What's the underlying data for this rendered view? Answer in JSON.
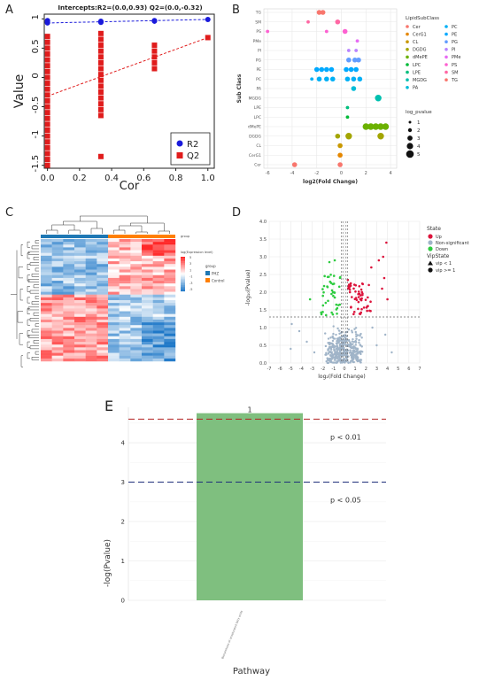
{
  "panels": {
    "A": "A",
    "B": "B",
    "C": "C",
    "D": "D",
    "E": "E"
  },
  "chart_data": [
    {
      "id": "A",
      "type": "scatter",
      "title": "Intercepts:R2=(0.0,0.93) Q2=(0.0,-0.32)",
      "xlabel": "Cor",
      "ylabel": "Value",
      "xlim": [
        -0.02,
        1.04
      ],
      "ylim": [
        -1.55,
        1.08
      ],
      "xticks": [
        "0.0",
        "0.2",
        "0.4",
        "0.6",
        "0.8",
        "1.0"
      ],
      "yticks": [
        "-1.5",
        "-1",
        "-0.5",
        "0",
        "0.5",
        "1"
      ],
      "legend": [
        "R2",
        "Q2"
      ],
      "legend_position": "bottom-right",
      "series": [
        {
          "name": "R2",
          "color": "#1a1adb",
          "marker": "circle",
          "points": [
            [
              0.0,
              0.93
            ],
            [
              0.0,
              0.96
            ],
            [
              0.0,
              0.94
            ],
            [
              0.0,
              0.97
            ],
            [
              0.333,
              0.95
            ],
            [
              0.333,
              0.96
            ],
            [
              0.333,
              0.94
            ],
            [
              0.667,
              0.96
            ],
            [
              0.667,
              0.97
            ],
            [
              1.0,
              0.99
            ]
          ],
          "fit": [
            [
              0.0,
              0.93
            ],
            [
              1.0,
              0.99
            ]
          ]
        },
        {
          "name": "Q2",
          "color": "#e01c1c",
          "marker": "square",
          "points": [
            [
              0,
              0.7
            ],
            [
              0,
              0.6
            ],
            [
              0,
              0.5
            ],
            [
              0,
              0.4
            ],
            [
              0,
              0.3
            ],
            [
              0,
              0.2
            ],
            [
              0,
              0.1
            ],
            [
              0,
              0.0
            ],
            [
              0,
              -0.1
            ],
            [
              0,
              -0.2
            ],
            [
              0,
              -0.3
            ],
            [
              0,
              -0.4
            ],
            [
              0,
              -0.5
            ],
            [
              0,
              -0.6
            ],
            [
              0,
              -0.7
            ],
            [
              0,
              -0.8
            ],
            [
              0,
              -0.9
            ],
            [
              0,
              -1.0
            ],
            [
              0,
              -1.1
            ],
            [
              0,
              -1.2
            ],
            [
              0,
              -1.3
            ],
            [
              0,
              -1.4
            ],
            [
              0,
              -1.5
            ],
            [
              0.333,
              0.75
            ],
            [
              0.333,
              0.65
            ],
            [
              0.333,
              0.55
            ],
            [
              0.333,
              0.45
            ],
            [
              0.333,
              0.35
            ],
            [
              0.333,
              0.25
            ],
            [
              0.333,
              0.15
            ],
            [
              0.333,
              0.05
            ],
            [
              0.333,
              -0.05
            ],
            [
              0.333,
              -0.15
            ],
            [
              0.333,
              -0.25
            ],
            [
              0.333,
              -0.35
            ],
            [
              0.333,
              -0.45
            ],
            [
              0.333,
              -0.55
            ],
            [
              0.333,
              -0.65
            ],
            [
              0.333,
              -1.35
            ],
            [
              0.667,
              0.55
            ],
            [
              0.667,
              0.45
            ],
            [
              0.667,
              0.35
            ],
            [
              0.667,
              0.25
            ],
            [
              0.667,
              0.15
            ],
            [
              1.0,
              0.68
            ]
          ],
          "fit": [
            [
              0.0,
              -0.32
            ],
            [
              1.0,
              0.68
            ]
          ]
        }
      ]
    },
    {
      "id": "B",
      "type": "scatter",
      "xlabel": "log2(Fold Change)",
      "ylabel": "Sub Class",
      "xlim": [
        -6.3,
        4.5
      ],
      "xticks": [
        "-6",
        "-4",
        "-2",
        "0",
        "2",
        "4"
      ],
      "categories": [
        "TG",
        "SM",
        "PS",
        "PMe",
        "PI",
        "PG",
        "PE",
        "PC",
        "PA",
        "MGDG",
        "LPE",
        "LPC",
        "dMePE",
        "DGDG",
        "CL",
        "CerG1",
        "Cer"
      ],
      "legend_title": "LipidSubClass",
      "legend_items": [
        {
          "name": "Cer",
          "color": "#f8766d"
        },
        {
          "name": "PC",
          "color": "#00b0f6"
        },
        {
          "name": "CerG1",
          "color": "#e58700"
        },
        {
          "name": "PE",
          "color": "#00a9ff"
        },
        {
          "name": "CL",
          "color": "#c99800"
        },
        {
          "name": "PG",
          "color": "#619cff"
        },
        {
          "name": "DGDG",
          "color": "#a3a500"
        },
        {
          "name": "PI",
          "color": "#b983ff"
        },
        {
          "name": "dMePE",
          "color": "#6bb100"
        },
        {
          "name": "PMe",
          "color": "#e76bf3"
        },
        {
          "name": "LPC",
          "color": "#00ba38"
        },
        {
          "name": "PS",
          "color": "#fd61d1"
        },
        {
          "name": "LPE",
          "color": "#00bf7d"
        },
        {
          "name": "SM",
          "color": "#ff67a4"
        },
        {
          "name": "MGDG",
          "color": "#00c0af"
        },
        {
          "name": "TG",
          "color": "#f8766d"
        },
        {
          "name": "PA",
          "color": "#00bcd8"
        }
      ],
      "size_legend_title": "log_pvalue",
      "size_legend": [
        "1",
        "2",
        "3",
        "4",
        "5"
      ],
      "points": [
        {
          "cls": "TG",
          "x": -1.8,
          "s": 2
        },
        {
          "cls": "TG",
          "x": -1.5,
          "s": 2
        },
        {
          "cls": "SM",
          "x": -2.7,
          "s": 1
        },
        {
          "cls": "SM",
          "x": -0.3,
          "s": 2
        },
        {
          "cls": "PS",
          "x": -6.0,
          "s": 1
        },
        {
          "cls": "PS",
          "x": -1.2,
          "s": 1
        },
        {
          "cls": "PS",
          "x": 0.3,
          "s": 2
        },
        {
          "cls": "PMe",
          "x": 1.3,
          "s": 1
        },
        {
          "cls": "PI",
          "x": 0.6,
          "s": 1
        },
        {
          "cls": "PI",
          "x": 1.2,
          "s": 1
        },
        {
          "cls": "PG",
          "x": 0.6,
          "s": 2
        },
        {
          "cls": "PG",
          "x": 1.1,
          "s": 2
        },
        {
          "cls": "PG",
          "x": 1.4,
          "s": 2
        },
        {
          "cls": "PE",
          "x": -2.0,
          "s": 2
        },
        {
          "cls": "PE",
          "x": -1.6,
          "s": 2
        },
        {
          "cls": "PE",
          "x": -1.2,
          "s": 2
        },
        {
          "cls": "PE",
          "x": -0.8,
          "s": 2
        },
        {
          "cls": "PE",
          "x": 0.4,
          "s": 2
        },
        {
          "cls": "PE",
          "x": 0.8,
          "s": 2
        },
        {
          "cls": "PE",
          "x": 1.2,
          "s": 2
        },
        {
          "cls": "PC",
          "x": -2.4,
          "s": 1
        },
        {
          "cls": "PC",
          "x": -1.8,
          "s": 2
        },
        {
          "cls": "PC",
          "x": -1.2,
          "s": 2
        },
        {
          "cls": "PC",
          "x": -0.7,
          "s": 2
        },
        {
          "cls": "PC",
          "x": 0.5,
          "s": 2
        },
        {
          "cls": "PC",
          "x": 1.0,
          "s": 2
        },
        {
          "cls": "PC",
          "x": 1.5,
          "s": 2
        },
        {
          "cls": "PA",
          "x": 1.0,
          "s": 2
        },
        {
          "cls": "MGDG",
          "x": 3.0,
          "s": 3
        },
        {
          "cls": "LPE",
          "x": 0.5,
          "s": 1
        },
        {
          "cls": "LPC",
          "x": 0.5,
          "s": 1
        },
        {
          "cls": "dMePE",
          "x": 2.0,
          "s": 3
        },
        {
          "cls": "dMePE",
          "x": 2.4,
          "s": 3
        },
        {
          "cls": "dMePE",
          "x": 2.8,
          "s": 3
        },
        {
          "cls": "dMePE",
          "x": 3.2,
          "s": 3
        },
        {
          "cls": "dMePE",
          "x": 3.6,
          "s": 3
        },
        {
          "cls": "DGDG",
          "x": -0.3,
          "s": 2
        },
        {
          "cls": "DGDG",
          "x": 0.6,
          "s": 3
        },
        {
          "cls": "DGDG",
          "x": 3.2,
          "s": 3
        },
        {
          "cls": "CL",
          "x": -0.1,
          "s": 2
        },
        {
          "cls": "CerG1",
          "x": -0.1,
          "s": 2
        },
        {
          "cls": "Cer",
          "x": -3.8,
          "s": 2
        },
        {
          "cls": "Cer",
          "x": -0.1,
          "s": 2
        }
      ]
    },
    {
      "id": "C",
      "type": "heatmap",
      "legend_title": "group",
      "colorbar_title": "log(Expression level)",
      "colorbar_ticks": [
        "5",
        "3",
        "1",
        "-1",
        "-3",
        "-5"
      ],
      "group_title": "group",
      "groups": [
        {
          "name": "PHZ",
          "color": "#1f78b4"
        },
        {
          "name": "Control",
          "color": "#ff7f00"
        }
      ]
    },
    {
      "id": "D",
      "type": "scatter",
      "xlabel": "log₂(Fold Change)",
      "ylabel": "-log₁₀(Pvalue)",
      "xlim": [
        -7,
        7
      ],
      "ylim": [
        0,
        4
      ],
      "xticks": [
        "-7",
        "-6",
        "-5",
        "-4",
        "-3",
        "-2",
        "-1",
        "0",
        "1",
        "2",
        "3",
        "4",
        "5",
        "6",
        "7"
      ],
      "yticks": [
        "0.0",
        "0.5",
        "1.0",
        "1.5",
        "2.0",
        "2.5",
        "3.0",
        "3.5",
        "4.0"
      ],
      "legend_state_title": "State",
      "legend_state": [
        {
          "name": "Up",
          "color": "#dc143c"
        },
        {
          "name": "Non-significant",
          "color": "#a0b4c8"
        },
        {
          "name": "Down",
          "color": "#2ecc40"
        }
      ],
      "legend_vip_title": "VipState",
      "legend_vip": [
        "vip < 1",
        "vip >= 1"
      ],
      "threshold_y": 1.3,
      "threshold_x": [
        -0.3,
        0.3
      ]
    },
    {
      "id": "E",
      "type": "bar",
      "categories": [
        "Biosynthesis of unsaturated fatty acids"
      ],
      "values": [
        4.75
      ],
      "bar_label": "1",
      "xlabel": "Pathway",
      "ylabel": "-log(Pvalue)",
      "ylim": [
        0,
        4.9
      ],
      "yticks": [
        "0",
        "1",
        "2",
        "3",
        "4"
      ],
      "thresholds": [
        {
          "y": 4.6,
          "label": "p < 0.01",
          "color": "#b22222"
        },
        {
          "y": 3.0,
          "label": "p < 0.05",
          "color": "#1f2f7a"
        }
      ],
      "bar_color": "#7fbf7f"
    }
  ]
}
